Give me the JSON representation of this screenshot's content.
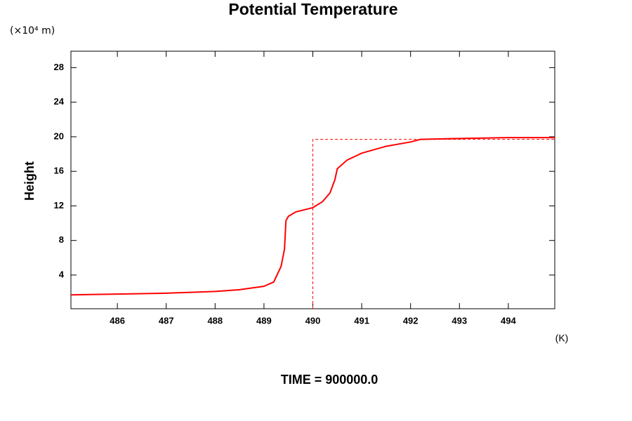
{
  "chart_data": {
    "type": "line",
    "title": "Potential Temperature",
    "y_label": "Height",
    "y_unit": "(×10⁴ m)",
    "x_unit": "(K)",
    "footer": "TIME = 900000.0",
    "xlim": [
      485.05,
      494.95
    ],
    "xticks": [
      486,
      487,
      488,
      489,
      490,
      491,
      492,
      493,
      494
    ],
    "ylim": [
      0.1,
      29.9
    ],
    "yticks": [
      4,
      8,
      12,
      16,
      20,
      24,
      28
    ],
    "series": [
      {
        "color": "#ff0000",
        "dash": false,
        "x": [
          485.05,
          486,
          487,
          488,
          488.5,
          489,
          489.2,
          489.35,
          489.42,
          489.45,
          489.5,
          489.65,
          490,
          490.2,
          490.35,
          490.45,
          490.5,
          490.7,
          491,
          491.5,
          492,
          492.2,
          493,
          494,
          494.95
        ],
        "values": [
          1.7,
          1.8,
          1.9,
          2.1,
          2.3,
          2.7,
          3.2,
          5,
          7,
          10.3,
          10.8,
          11.3,
          11.8,
          12.5,
          13.5,
          15,
          16.3,
          17.3,
          18.1,
          18.9,
          19.4,
          19.7,
          19.8,
          19.9,
          19.9
        ]
      },
      {
        "color": "#ff0000",
        "dash": true,
        "x": [
          490,
          490,
          494.95
        ],
        "values": [
          0.1,
          19.7,
          19.7
        ]
      }
    ]
  }
}
